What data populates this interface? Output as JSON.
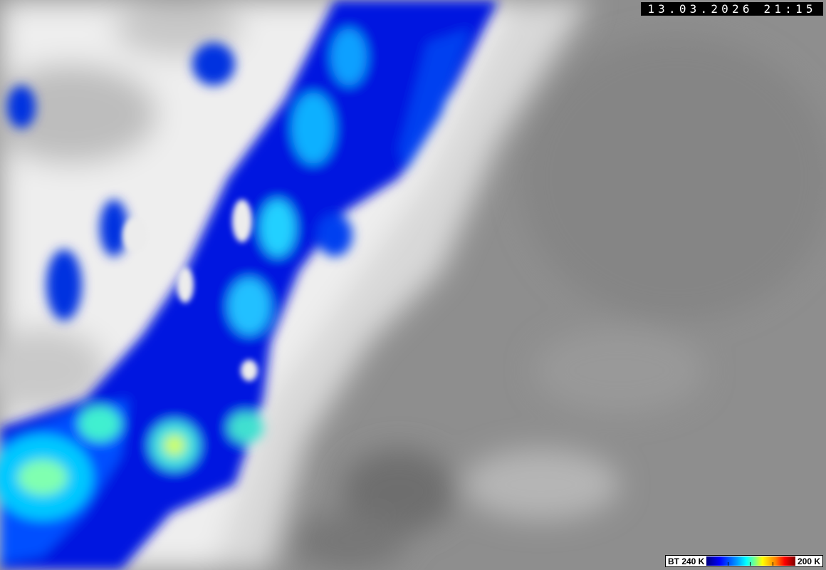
{
  "image": {
    "type": "satellite infrared image",
    "timestamp": "13.03.2026 21:15",
    "legend": {
      "left_label": "BT 240 K",
      "right_label": "200 K",
      "colors": [
        "#000080",
        "#0000ff",
        "#00a0ff",
        "#00ffff",
        "#80ff80",
        "#ffff00",
        "#ff8000",
        "#ff0000",
        "#800000"
      ]
    },
    "colors": {
      "background_gray": "#8c8c8c",
      "cloud_white": "#f0f0f0"
    }
  }
}
